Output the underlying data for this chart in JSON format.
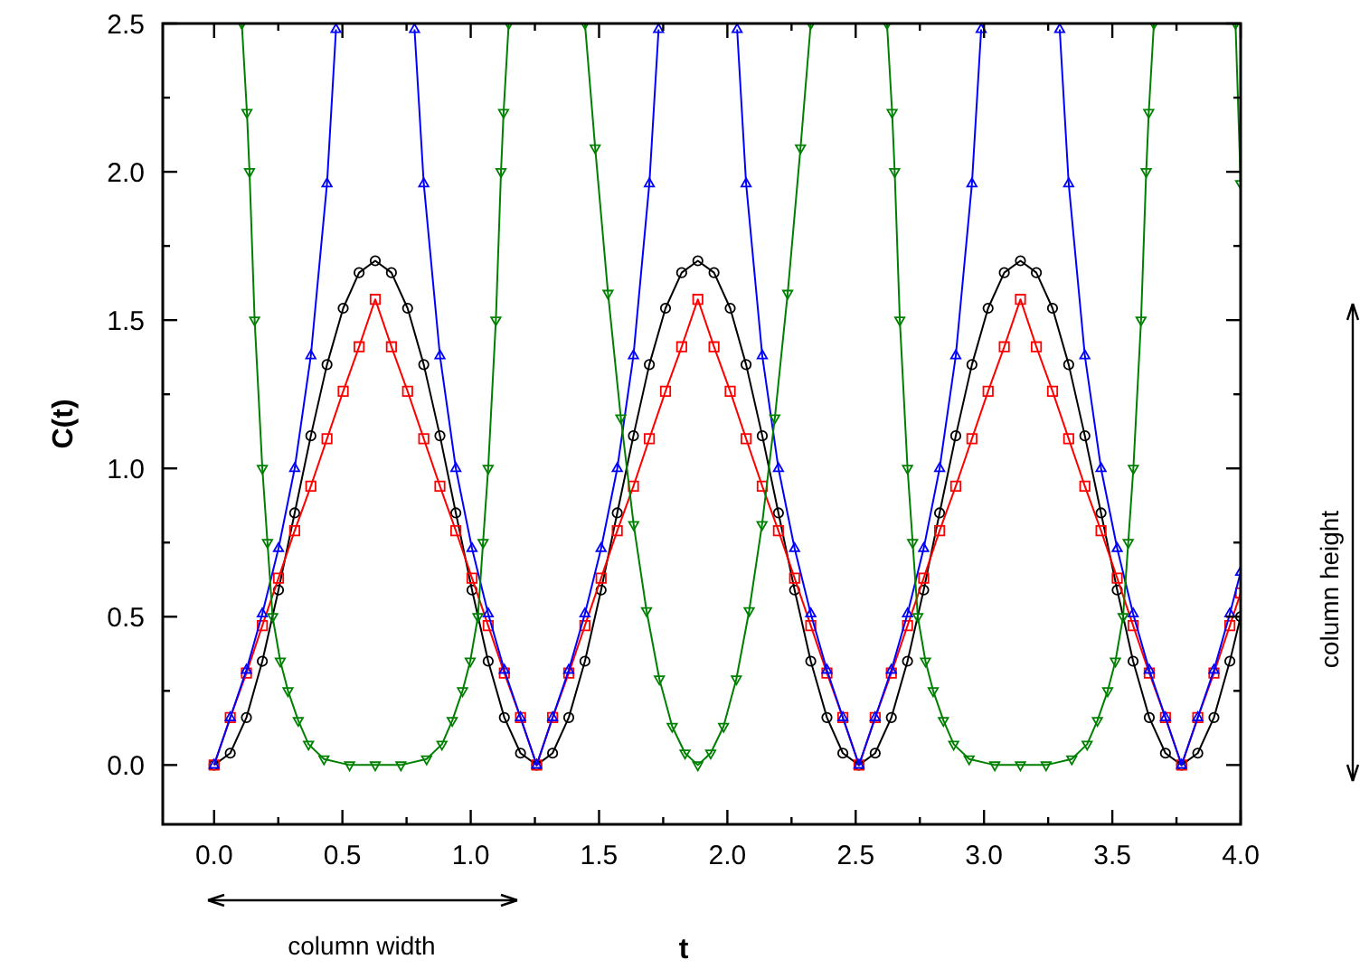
{
  "chart_data": {
    "type": "line",
    "xlabel": "t",
    "ylabel": "C(t)",
    "xlim": [
      -0.2,
      4.0
    ],
    "ylim": [
      -0.2,
      2.5
    ],
    "xticks": [
      {
        "value": 0,
        "label": "0.0"
      },
      {
        "value": 0.25,
        "label": null
      },
      {
        "value": 0.5,
        "label": "0.5"
      },
      {
        "value": 0.75,
        "label": null
      },
      {
        "value": 1,
        "label": "1.0"
      },
      {
        "value": 1.25,
        "label": null
      },
      {
        "value": 1.5,
        "label": "1.5"
      },
      {
        "value": 1.75,
        "label": null
      },
      {
        "value": 2,
        "label": "2.0"
      },
      {
        "value": 2.25,
        "label": null
      },
      {
        "value": 2.5,
        "label": "2.5"
      },
      {
        "value": 2.75,
        "label": null
      },
      {
        "value": 3,
        "label": "3.0"
      },
      {
        "value": 3.25,
        "label": null
      },
      {
        "value": 3.5,
        "label": "3.5"
      },
      {
        "value": 3.75,
        "label": null
      },
      {
        "value": 4,
        "label": "4.0"
      }
    ],
    "yticks": [
      {
        "value": 0,
        "label": "0.0"
      },
      {
        "value": 0.25,
        "label": null
      },
      {
        "value": 0.5,
        "label": "0.5"
      },
      {
        "value": 0.75,
        "label": null
      },
      {
        "value": 1,
        "label": "1.0"
      },
      {
        "value": 1.25,
        "label": null
      },
      {
        "value": 1.5,
        "label": "1.5"
      },
      {
        "value": 1.75,
        "label": null
      },
      {
        "value": 2,
        "label": "2.0"
      },
      {
        "value": 2.25,
        "label": null
      },
      {
        "value": 2.5,
        "label": "2.5"
      }
    ],
    "grid": false,
    "line_style": "solid",
    "annotations": [
      "column width",
      "column height"
    ],
    "x": [
      0,
      0.063,
      0.126,
      0.188,
      0.251,
      0.314,
      0.377,
      0.44,
      0.503,
      0.565,
      0.628,
      0.691,
      0.754,
      0.817,
      0.88,
      0.942,
      1.005,
      1.068,
      1.131,
      1.194,
      1.257,
      1.319,
      1.382,
      1.445,
      1.508,
      1.571,
      1.634,
      1.696,
      1.759,
      1.822,
      1.885,
      1.948,
      2.011,
      2.073,
      2.136,
      2.199,
      2.262,
      2.325,
      2.388,
      2.45,
      2.513,
      2.576,
      2.639,
      2.702,
      2.765,
      2.827,
      2.89,
      2.953,
      3.016,
      3.079,
      3.142,
      3.204,
      3.267,
      3.33,
      3.393,
      3.456,
      3.519,
      3.581,
      3.644,
      3.707,
      3.77,
      3.833,
      3.896,
      3.958,
      4.0
    ],
    "series": [
      {
        "color": "#000000",
        "marker": "circle",
        "values": [
          0,
          0.04,
          0.16,
          0.35,
          0.59,
          0.85,
          1.11,
          1.35,
          1.54,
          1.66,
          1.7,
          1.66,
          1.54,
          1.35,
          1.11,
          0.85,
          0.59,
          0.35,
          0.16,
          0.04,
          0,
          0.04,
          0.16,
          0.35,
          0.59,
          0.85,
          1.11,
          1.35,
          1.54,
          1.66,
          1.7,
          1.66,
          1.54,
          1.35,
          1.11,
          0.85,
          0.59,
          0.35,
          0.16,
          0.04,
          0,
          0.04,
          0.16,
          0.35,
          0.59,
          0.85,
          1.11,
          1.35,
          1.54,
          1.66,
          1.7,
          1.66,
          1.54,
          1.35,
          1.11,
          0.85,
          0.59,
          0.35,
          0.16,
          0.04,
          0,
          0.04,
          0.16,
          0.35,
          0.5
        ]
      },
      {
        "color": "#ff0000",
        "marker": "square",
        "values": [
          0,
          0.16,
          0.31,
          0.47,
          0.63,
          0.79,
          0.94,
          1.1,
          1.26,
          1.41,
          1.57,
          1.41,
          1.26,
          1.1,
          0.94,
          0.79,
          0.63,
          0.47,
          0.31,
          0.16,
          0,
          0.16,
          0.31,
          0.47,
          0.63,
          0.79,
          0.94,
          1.1,
          1.26,
          1.41,
          1.57,
          1.41,
          1.26,
          1.1,
          0.94,
          0.79,
          0.63,
          0.47,
          0.31,
          0.16,
          0,
          0.16,
          0.31,
          0.47,
          0.63,
          0.79,
          0.94,
          1.1,
          1.26,
          1.41,
          1.57,
          1.41,
          1.26,
          1.1,
          0.94,
          0.79,
          0.63,
          0.47,
          0.31,
          0.16,
          0,
          0.16,
          0.31,
          0.47,
          0.58
        ]
      },
      {
        "color": "#0000ff",
        "marker": "triangle",
        "x": [
          0,
          0.063,
          0.126,
          0.188,
          0.251,
          0.314,
          0.377,
          0.44,
          0.475,
          0.628,
          0.781,
          0.817,
          0.88,
          0.942,
          1.005,
          1.068,
          1.131,
          1.194,
          1.257,
          1.319,
          1.382,
          1.445,
          1.508,
          1.571,
          1.634,
          1.696,
          1.732,
          1.885,
          2.038,
          2.073,
          2.136,
          2.199,
          2.262,
          2.325,
          2.388,
          2.45,
          2.513,
          2.576,
          2.639,
          2.702,
          2.765,
          2.827,
          2.89,
          2.953,
          2.989,
          3.142,
          3.295,
          3.33,
          3.393,
          3.456,
          3.519,
          3.581,
          3.644,
          3.707,
          3.77,
          3.833,
          3.896,
          3.958,
          4.0
        ],
        "values": [
          0,
          0.16,
          0.32,
          0.51,
          0.73,
          1.0,
          1.38,
          1.96,
          2.48,
          null,
          2.48,
          1.96,
          1.38,
          1.0,
          0.73,
          0.51,
          0.32,
          0.16,
          0,
          0.16,
          0.32,
          0.51,
          0.73,
          1.0,
          1.38,
          1.96,
          2.48,
          null,
          2.48,
          1.96,
          1.38,
          1.0,
          0.73,
          0.51,
          0.32,
          0.16,
          0,
          0.16,
          0.32,
          0.51,
          0.73,
          1.0,
          1.38,
          1.96,
          2.48,
          null,
          2.48,
          1.96,
          1.38,
          1.0,
          0.73,
          0.51,
          0.32,
          0.16,
          0,
          0.16,
          0.32,
          0.51,
          0.65
        ]
      },
      {
        "color": "#008000",
        "marker": "triangle-down",
        "x": [
          0.108,
          0.128,
          0.138,
          0.158,
          0.188,
          0.208,
          0.228,
          0.258,
          0.288,
          0.328,
          0.368,
          0.428,
          0.528,
          0.628,
          0.728,
          0.828,
          0.888,
          0.928,
          0.968,
          0.998,
          1.028,
          1.048,
          1.068,
          1.098,
          1.118,
          1.128,
          1.148,
          1.3,
          1.445,
          1.485,
          1.535,
          1.585,
          1.635,
          1.685,
          1.735,
          1.785,
          1.835,
          1.885,
          1.935,
          1.985,
          2.035,
          2.085,
          2.135,
          2.185,
          2.235,
          2.285,
          2.325,
          2.48,
          2.622,
          2.642,
          2.652,
          2.672,
          2.702,
          2.722,
          2.742,
          2.772,
          2.802,
          2.842,
          2.882,
          2.942,
          3.042,
          3.142,
          3.242,
          3.342,
          3.402,
          3.442,
          3.482,
          3.512,
          3.542,
          3.562,
          3.582,
          3.612,
          3.632,
          3.642,
          3.662,
          3.8,
          3.98,
          4.0
        ],
        "values": [
          2.5,
          2.2,
          2.0,
          1.5,
          1.0,
          0.75,
          0.5,
          0.35,
          0.25,
          0.15,
          0.07,
          0.02,
          0,
          0,
          0,
          0.02,
          0.07,
          0.15,
          0.25,
          0.35,
          0.5,
          0.75,
          1.0,
          1.5,
          2.0,
          2.2,
          2.5,
          null,
          2.5,
          2.08,
          1.59,
          1.17,
          0.81,
          0.52,
          0.29,
          0.13,
          0.04,
          0,
          0.04,
          0.13,
          0.29,
          0.52,
          0.81,
          1.17,
          1.59,
          2.08,
          2.5,
          null,
          2.5,
          2.2,
          2.0,
          1.5,
          1.0,
          0.75,
          0.5,
          0.35,
          0.25,
          0.15,
          0.07,
          0.02,
          0,
          0,
          0,
          0.02,
          0.07,
          0.15,
          0.25,
          0.35,
          0.5,
          0.75,
          1.0,
          1.5,
          2.0,
          2.2,
          2.5,
          null,
          2.5,
          1.96
        ]
      }
    ]
  }
}
